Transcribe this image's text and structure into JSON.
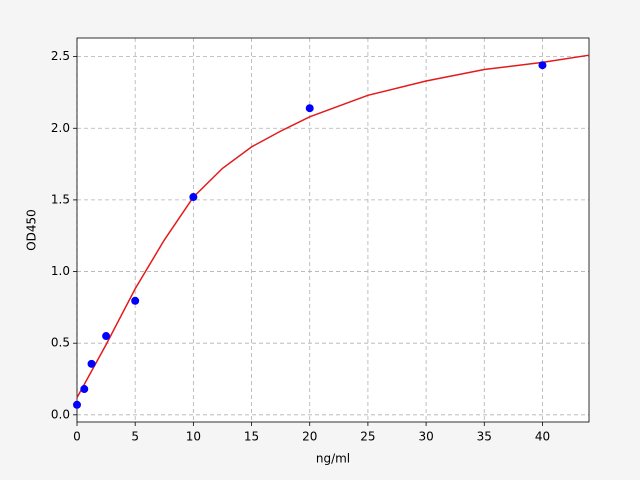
{
  "chart_data": {
    "type": "scatter",
    "x_label": "ng/ml",
    "y_label": "OD450",
    "xlim": [
      0,
      44
    ],
    "ylim": [
      -0.05,
      2.63
    ],
    "xticks": [
      0,
      5,
      10,
      15,
      20,
      25,
      30,
      35,
      40
    ],
    "yticks": [
      {
        "value": 0,
        "label": "0.0"
      },
      0.5,
      {
        "value": 1,
        "label": "1.0"
      },
      1.5,
      {
        "value": 2,
        "label": "2.0"
      },
      2.5
    ],
    "grid": true,
    "series": [
      {
        "type": "line",
        "color": "#e31a1c",
        "x": [
          0,
          2.5,
          5,
          7.5,
          10,
          12.5,
          15,
          17.5,
          20,
          25,
          30,
          35,
          40,
          44
        ],
        "values": [
          0.12,
          0.49,
          0.88,
          1.22,
          1.52,
          1.72,
          1.87,
          1.98,
          2.08,
          2.23,
          2.33,
          2.41,
          2.46,
          2.51
        ]
      },
      {
        "type": "scatter",
        "color": "#0000ff",
        "x": [
          0,
          0.625,
          1.25,
          2.5,
          5,
          10,
          20,
          40
        ],
        "values": [
          0.07,
          0.18,
          0.356,
          0.55,
          0.796,
          1.52,
          2.14,
          2.44
        ]
      }
    ]
  }
}
